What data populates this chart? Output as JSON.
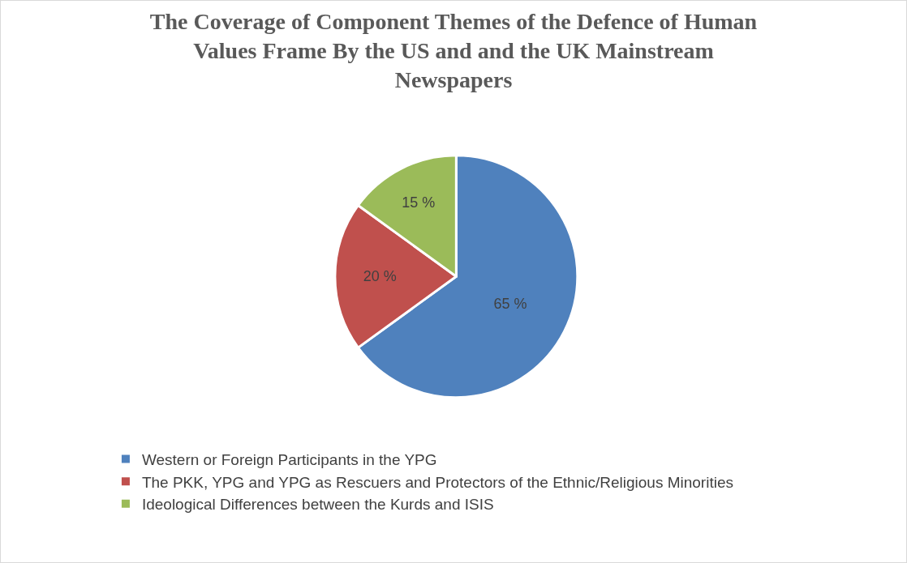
{
  "chart_data": {
    "type": "pie",
    "title": "The Coverage of Component Themes of the Defence of Human Values Frame By the US and and the UK Mainstream Newspapers",
    "categories": [
      "Western or Foreign Participants in the YPG",
      "The PKK, YPG and YPG as Rescuers and Protectors of the Ethnic/Religious Minorities",
      "Ideological Differences between the Kurds and ISIS"
    ],
    "values": [
      65,
      20,
      15
    ],
    "value_labels": [
      "65 %",
      "20 %",
      "15 %"
    ],
    "colors": [
      "#4f81bd",
      "#c0504d",
      "#9bbb59"
    ],
    "legend": "bottom left"
  }
}
